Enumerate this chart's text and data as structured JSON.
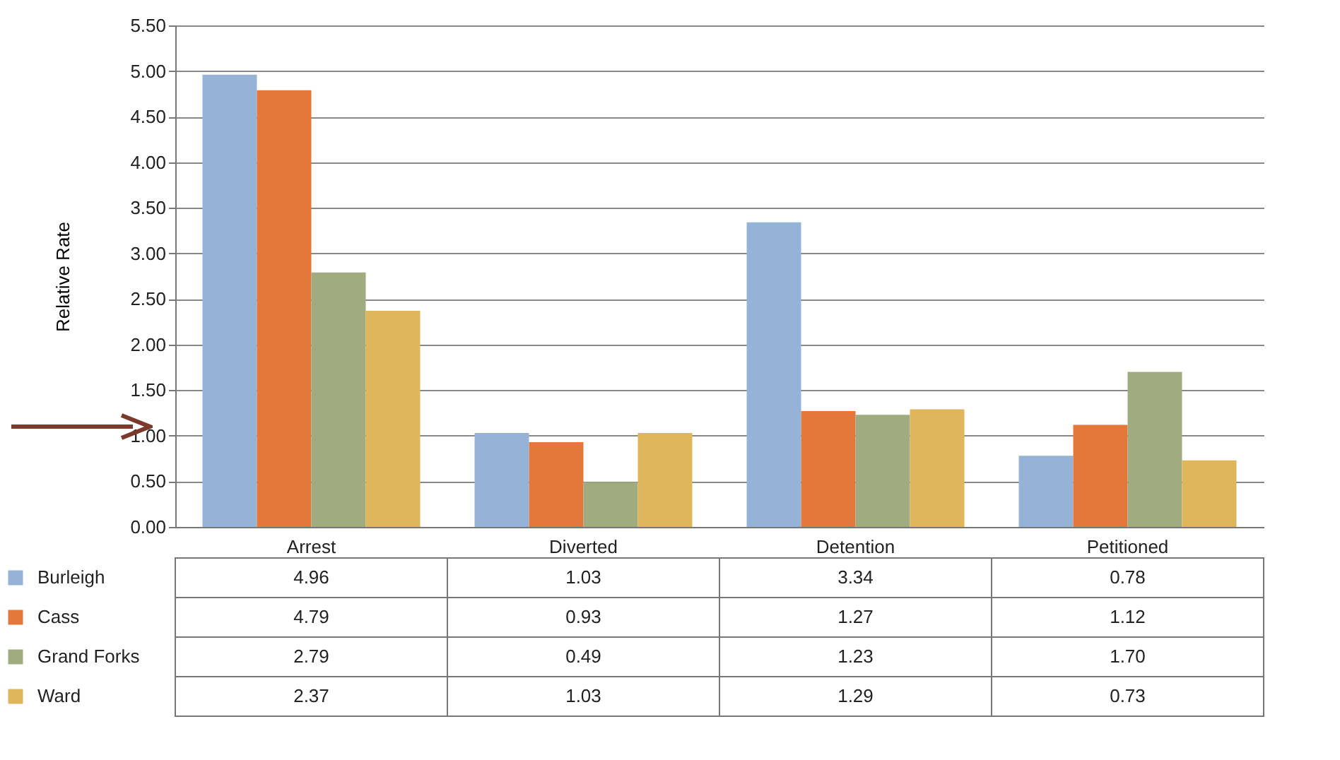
{
  "chart_data": {
    "type": "bar",
    "ylabel": "Relative Rate",
    "categories": [
      "Arrest",
      "Diverted",
      "Detention",
      "Petitioned"
    ],
    "series": [
      {
        "name": "Burleigh",
        "color": "#95b3d7",
        "values": [
          4.96,
          1.03,
          3.34,
          0.78
        ],
        "value_labels": [
          "4.96",
          "1.03",
          "3.34",
          "0.78"
        ]
      },
      {
        "name": "Cass",
        "color": "#e3783a",
        "values": [
          4.79,
          0.93,
          1.27,
          1.12
        ],
        "value_labels": [
          "4.79",
          "0.93",
          "1.27",
          "1.12"
        ]
      },
      {
        "name": "Grand Forks",
        "color": "#a0ab80",
        "values": [
          2.79,
          0.49,
          1.23,
          1.7
        ],
        "value_labels": [
          "2.79",
          "0.49",
          "1.23",
          "1.70"
        ]
      },
      {
        "name": "Ward",
        "color": "#e0b65b",
        "values": [
          2.37,
          1.03,
          1.29,
          0.73
        ],
        "value_labels": [
          "2.37",
          "1.03",
          "1.29",
          "0.73"
        ]
      }
    ],
    "ylim": [
      0,
      5.5
    ],
    "yticks": [
      {
        "value": 0,
        "label": "0.00"
      },
      {
        "value": 0.5,
        "label": "0.50"
      },
      {
        "value": 1,
        "label": "1.00"
      },
      {
        "value": 1.5,
        "label": "1.50"
      },
      {
        "value": 2,
        "label": "2.00"
      },
      {
        "value": 2.5,
        "label": "2.50"
      },
      {
        "value": 3,
        "label": "3.00"
      },
      {
        "value": 3.5,
        "label": "3.50"
      },
      {
        "value": 4,
        "label": "4.00"
      },
      {
        "value": 4.5,
        "label": "4.50"
      },
      {
        "value": 5,
        "label": "5.00"
      },
      {
        "value": 5.5,
        "label": "5.50"
      }
    ],
    "grid": "y",
    "legend": "bottom left"
  }
}
